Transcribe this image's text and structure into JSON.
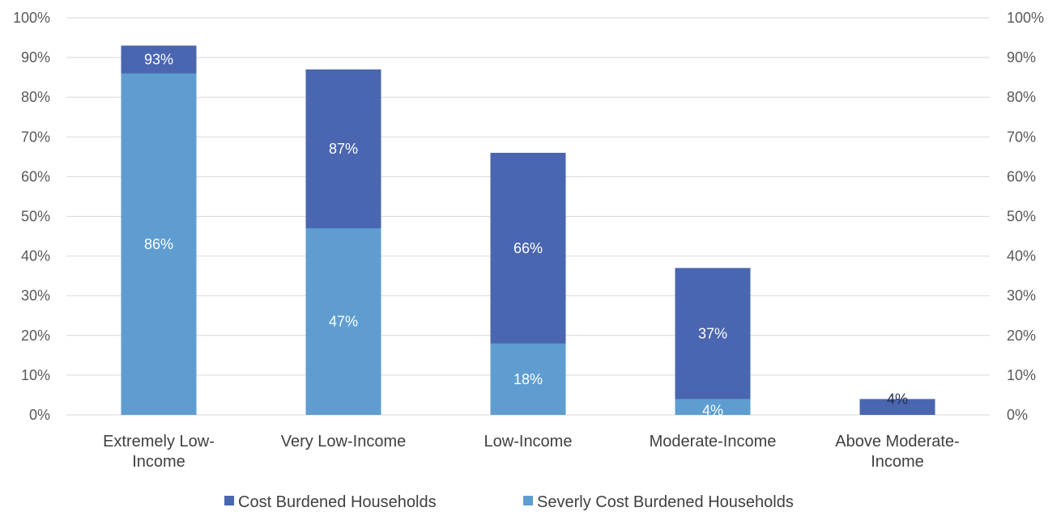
{
  "chart_data": {
    "type": "bar",
    "stacking": "overlapped",
    "categories": [
      [
        "Extremely Low-",
        "Income"
      ],
      [
        "Very Low-Income"
      ],
      [
        "Low-Income"
      ],
      [
        "Moderate-Income"
      ],
      [
        "Above Moderate-",
        "Income"
      ]
    ],
    "series": [
      {
        "name": "Cost Burdened Households",
        "values": [
          93,
          87,
          66,
          37,
          4
        ],
        "labels": [
          "93%",
          "87%",
          "66%",
          "37%",
          "4%"
        ],
        "color": "#4a66b0",
        "label_color": "#ffffff",
        "last_label_color": "#1f2d4d"
      },
      {
        "name": "Severly Cost Burdened Households",
        "values": [
          86,
          47,
          18,
          4,
          0
        ],
        "labels": [
          "86%",
          "47%",
          "18%",
          "4%",
          ""
        ],
        "color": "#5f9dd1",
        "label_color": "#ffffff"
      }
    ],
    "ylim": [
      0,
      100
    ],
    "yticks": [
      "0%",
      "10%",
      "20%",
      "30%",
      "40%",
      "50%",
      "60%",
      "70%",
      "80%",
      "90%",
      "100%"
    ],
    "grid": true,
    "secondary_axis": true,
    "legend_position": "bottom",
    "gridline_color": "#d9d9d9"
  }
}
